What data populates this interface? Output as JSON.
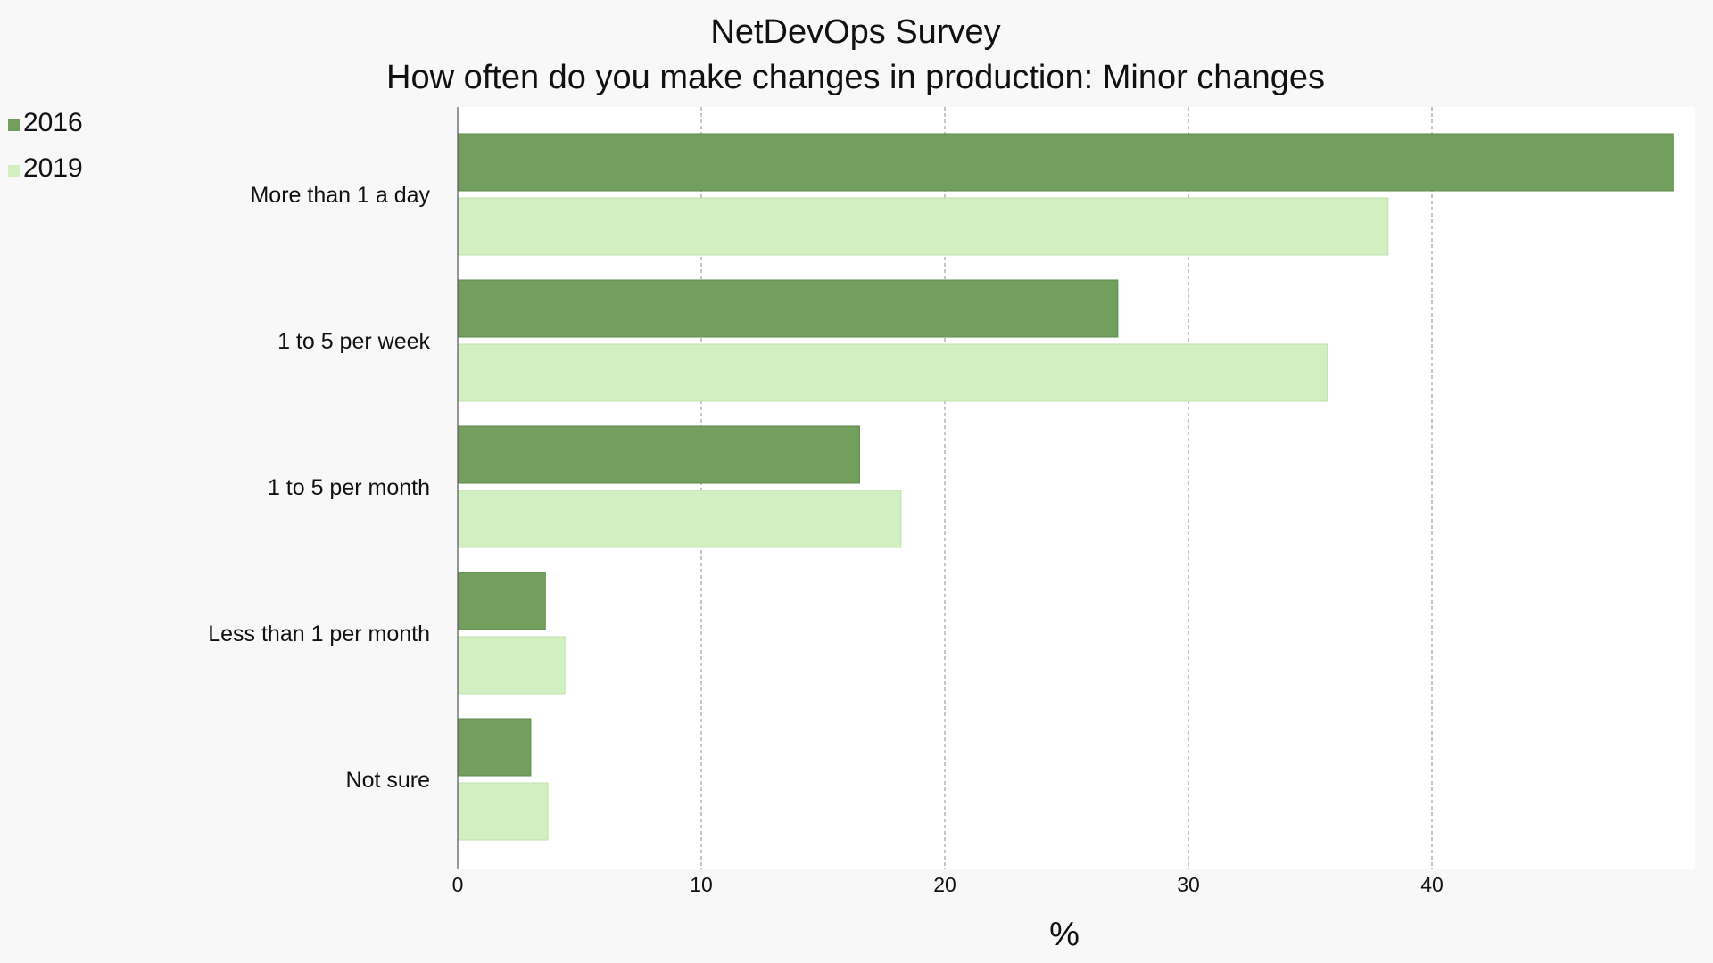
{
  "chart_data": {
    "type": "bar",
    "orientation": "horizontal",
    "title": "NetDevOps Survey",
    "subtitle": "How often do you make changes in production: Minor changes",
    "xlabel": "%",
    "ylabel": "",
    "categories": [
      "More than 1 a day",
      "1 to 5 per week",
      "1 to 5 per month",
      "Less than 1 per month",
      "Not sure"
    ],
    "series": [
      {
        "name": "2016",
        "color": "#739f5e",
        "values": [
          49.9,
          27.1,
          16.5,
          3.6,
          3.0
        ]
      },
      {
        "name": "2019",
        "color": "#d2efc2",
        "values": [
          38.2,
          35.7,
          18.2,
          4.4,
          3.7
        ]
      }
    ],
    "xlim": [
      0,
      51
    ],
    "xticks": [
      0,
      10,
      20,
      30,
      40
    ],
    "grid": "vertical dashed",
    "legend": "top-left"
  }
}
